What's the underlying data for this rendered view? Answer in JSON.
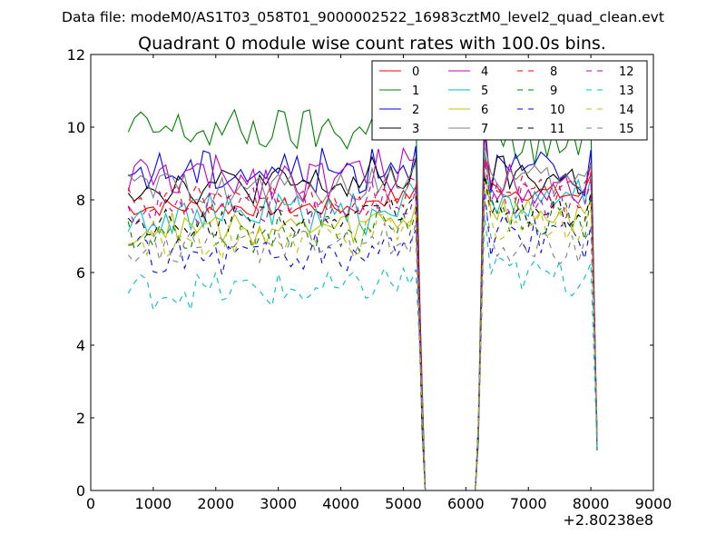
{
  "chart_data": {
    "type": "line",
    "suptitle": "Data file: modeM0/AS1T03_058T01_9000002522_16983cztM0_level2_quad_clean.evt",
    "title": "Quadrant 0 module wise count rates with 100.0s bins.",
    "xlabel": "",
    "ylabel": "",
    "x_offset_label": "+2.80238e8",
    "xlim": [
      0,
      9000
    ],
    "ylim": [
      0,
      12
    ],
    "xticks": [
      0,
      1000,
      2000,
      3000,
      4000,
      5000,
      6000,
      7000,
      8000,
      9000
    ],
    "xtick_labels": [
      "0",
      "1000",
      "2000",
      "3000",
      "4000",
      "5000",
      "6000",
      "7000",
      "8000",
      "9000"
    ],
    "yticks": [
      0,
      2,
      4,
      6,
      8,
      10,
      12
    ],
    "ytick_labels": [
      "0",
      "2",
      "4",
      "6",
      "8",
      "10",
      "12"
    ],
    "grid": false,
    "legend_position": "top-right",
    "x_seg1": [
      600,
      700,
      800,
      900,
      1000,
      1100,
      1200,
      1300,
      1400,
      1500,
      1600,
      1700,
      1800,
      1900,
      2000,
      2100,
      2200,
      2300,
      2400,
      2500,
      2600,
      2700,
      2800,
      2900,
      3000,
      3100,
      3200,
      3300,
      3400,
      3500,
      3600,
      3700,
      3800,
      3900,
      4000,
      4100,
      4200,
      4300,
      4400,
      4500,
      4600,
      4700,
      4800,
      4900,
      5000,
      5100,
      5200,
      5300,
      5350
    ],
    "gap_x": [
      5350,
      6150
    ],
    "x_seg2": [
      6150,
      6200,
      6300,
      6400,
      6500,
      6600,
      6700,
      6800,
      6900,
      7000,
      7100,
      7200,
      7300,
      7400,
      7500,
      7600,
      7700,
      7800,
      7900,
      8000,
      8100
    ],
    "series": [
      {
        "name": "0",
        "color": "#ff0000",
        "style": "solid",
        "base": 7.8,
        "spread": 0.15,
        "seg2_base": 8.3,
        "peak": 9.3
      },
      {
        "name": "1",
        "color": "#008000",
        "style": "solid",
        "base": 9.9,
        "spread": 0.35,
        "seg2_base": 9.6,
        "peak": 11.0
      },
      {
        "name": "2",
        "color": "#0000ff",
        "style": "solid",
        "base": 8.8,
        "spread": 0.35,
        "seg2_base": 8.8,
        "peak": 10.2
      },
      {
        "name": "3",
        "color": "#000000",
        "style": "solid",
        "base": 8.4,
        "spread": 0.3,
        "seg2_base": 8.7,
        "peak": 9.9
      },
      {
        "name": "4",
        "color": "#bf00bf",
        "style": "solid",
        "base": 8.6,
        "spread": 0.35,
        "seg2_base": 8.6,
        "peak": 9.9
      },
      {
        "name": "5",
        "color": "#00bfbf",
        "style": "solid",
        "base": 7.6,
        "spread": 0.35,
        "seg2_base": 8.1,
        "peak": 9.3
      },
      {
        "name": "6",
        "color": "#bfbf00",
        "style": "solid",
        "base": 7.2,
        "spread": 0.25,
        "seg2_base": 7.7,
        "peak": 8.8
      },
      {
        "name": "7",
        "color": "#808080",
        "style": "solid",
        "base": 8.3,
        "spread": 0.25,
        "seg2_base": 8.6,
        "peak": 9.5
      },
      {
        "name": "8",
        "color": "#ff0000",
        "style": "dashed",
        "base": 8.0,
        "spread": 0.25,
        "seg2_base": 8.3,
        "peak": 9.1
      },
      {
        "name": "9",
        "color": "#008000",
        "style": "dashed",
        "base": 7.1,
        "spread": 0.3,
        "seg2_base": 7.6,
        "peak": 8.7
      },
      {
        "name": "10",
        "color": "#0000ff",
        "style": "dashed",
        "base": 6.5,
        "spread": 0.35,
        "seg2_base": 7.0,
        "peak": 8.3
      },
      {
        "name": "11",
        "color": "#000000",
        "style": "dashed",
        "base": 7.4,
        "spread": 0.25,
        "seg2_base": 7.8,
        "peak": 8.7
      },
      {
        "name": "12",
        "color": "#bf00bf",
        "style": "dashed",
        "base": 7.8,
        "spread": 0.3,
        "seg2_base": 8.1,
        "peak": 9.1
      },
      {
        "name": "13",
        "color": "#00bfbf",
        "style": "dashed",
        "base": 5.5,
        "spread": 0.3,
        "seg2_base": 6.0,
        "peak": 7.6
      },
      {
        "name": "14",
        "color": "#bfbf00",
        "style": "dashed",
        "base": 6.9,
        "spread": 0.3,
        "seg2_base": 7.4,
        "peak": 8.5
      },
      {
        "name": "15",
        "color": "#808080",
        "style": "dashed",
        "base": 6.7,
        "spread": 0.25,
        "seg2_base": 6.8,
        "peak": 8.0
      }
    ]
  }
}
